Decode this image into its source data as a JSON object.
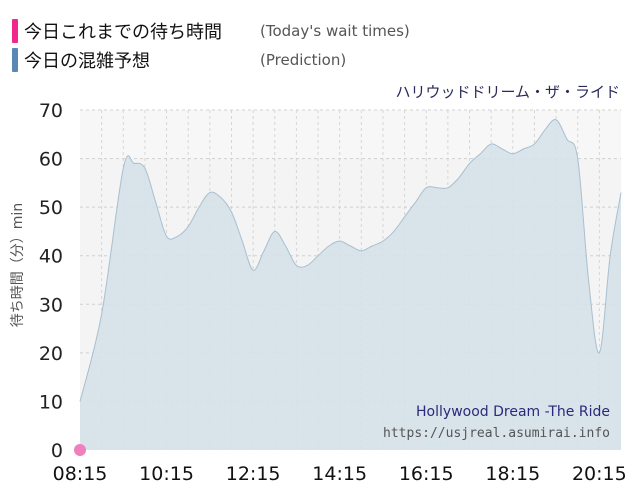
{
  "legend": [
    {
      "label": "今日これまでの待ち時間",
      "sublabel": "(Today's wait times)",
      "color": "#f0288c"
    },
    {
      "label": "今日の混雑予想",
      "sublabel": "(Prediction)",
      "color": "#5b87b5"
    }
  ],
  "attraction_jp": "ハリウッドドリーム・ザ・ライド",
  "watermark": {
    "title": "Hollywood Dream -The Ride",
    "url": "https://usjreal.asumirai.info"
  },
  "colors": {
    "prediction_fill": "#d5e1e9",
    "prediction_line": "#a9bfd0",
    "today_point": "#f07fbd",
    "plot_bg": "#f4f4f4"
  },
  "chart_data": {
    "type": "area",
    "ylabel": "待ち時間（分）min",
    "ylim": [
      0,
      70
    ],
    "yticks": [
      0,
      10,
      20,
      30,
      40,
      50,
      60,
      70
    ],
    "xlim": [
      "08:15",
      "20:45"
    ],
    "xticks": [
      "08:15",
      "10:15",
      "12:15",
      "14:15",
      "16:15",
      "18:15",
      "20:15"
    ],
    "series": [
      {
        "kind": "prediction",
        "x": [
          "08:15",
          "08:45",
          "09:15",
          "09:30",
          "09:45",
          "10:00",
          "10:15",
          "10:30",
          "10:45",
          "11:00",
          "11:15",
          "11:30",
          "11:45",
          "12:00",
          "12:15",
          "12:30",
          "12:45",
          "13:00",
          "13:15",
          "13:30",
          "13:45",
          "14:00",
          "14:15",
          "14:30",
          "14:45",
          "15:00",
          "15:15",
          "15:30",
          "15:45",
          "16:00",
          "16:15",
          "16:30",
          "16:45",
          "17:00",
          "17:15",
          "17:30",
          "17:45",
          "18:00",
          "18:15",
          "18:30",
          "18:45",
          "19:00",
          "19:15",
          "19:30",
          "19:45",
          "20:00",
          "20:15",
          "20:30",
          "20:45"
        ],
        "values": [
          10,
          28,
          58,
          59,
          58,
          51,
          44,
          44,
          46,
          50,
          53,
          52,
          49,
          43,
          37,
          41,
          45,
          42,
          38,
          38,
          40,
          42,
          43,
          42,
          41,
          42,
          43,
          45,
          48,
          51,
          54,
          54,
          54,
          56,
          59,
          61,
          63,
          62,
          61,
          62,
          63,
          66,
          68,
          64,
          60,
          35,
          20,
          40,
          53
        ]
      },
      {
        "kind": "today",
        "x": [
          "08:15"
        ],
        "values": [
          0
        ]
      }
    ]
  }
}
